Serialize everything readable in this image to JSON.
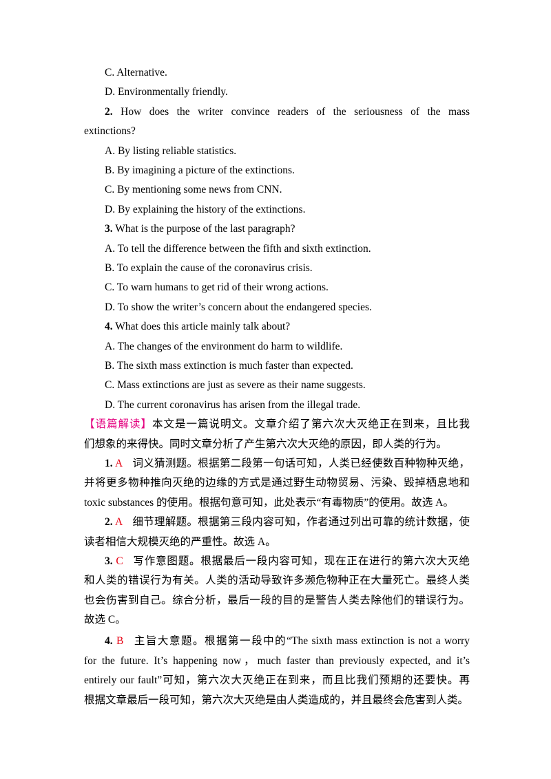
{
  "prev_options": [
    "C. Alternative.",
    "D. Environmentally friendly."
  ],
  "questions": [
    {
      "number": "2.",
      "lines": [
        "How does the writer convince readers of the seriousness of the mass",
        "extinctions?"
      ],
      "options": [
        "A. By listing reliable statistics.",
        "B. By imagining a picture of the extinctions.",
        "C. By mentioning some news from CNN.",
        "D. By explaining the history of the extinctions."
      ]
    },
    {
      "number": "3.",
      "lines": [
        "What is the purpose of the last paragraph?"
      ],
      "options": [
        "A. To tell the difference between the fifth and sixth extinction.",
        "B. To explain the cause of the coronavirus crisis.",
        "C. To warn humans to get rid of their wrong actions.",
        "D. To show the writer’s concern about the endangered species."
      ]
    },
    {
      "number": "4.",
      "lines": [
        "What does this article mainly talk about?"
      ],
      "options": [
        "A.  The changes of the environment do harm to wildlife.",
        "B. The sixth mass extinction is much faster than expected.",
        "C. Mass extinctions are just as severe as their name suggests.",
        "D. The current coronavirus has arisen from the illegal trade."
      ]
    }
  ],
  "analysis": {
    "label": "【语篇解读】",
    "lines": [
      "本文是一篇说明文。文章介绍了第六次大灭绝正在到来，且比我",
      "们想象的来得快。同时文章分析了产生第六次大灭绝的原因，即人类的行为。"
    ]
  },
  "answers": [
    {
      "number": "1.",
      "answer": "A",
      "lines": [
        "词义猜测题。根据第二段第一句话可知，人类已经使数百种物种灭绝，",
        "并将更多物种推向灭绝的边缘的方式是通过野生动物贸易、污染、毁掉栖息地和",
        "toxic substances 的使用。根据句意可知，此处表示“有毒物质”的使用。故选 A。"
      ]
    },
    {
      "number": "2.",
      "answer": "A",
      "lines": [
        "细节理解题。根据第三段内容可知，作者通过列出可靠的统计数据，使",
        "读者相信大规模灭绝的严重性。故选 A。"
      ]
    },
    {
      "number": "3.",
      "answer": "C",
      "lines": [
        "写作意图题。根据最后一段内容可知，现在正在进行的第六次大灭绝",
        "和人类的错误行为有关。人类的活动导致许多濒危物种正在大量死亡。最终人类",
        "也会伤害到自己。综合分析，最后一段的目的是警告人类去除他们的错误行为。",
        "故选 C。"
      ]
    },
    {
      "number": "4.",
      "answer": "B",
      "lines": [
        "主旨大意题。根据第一段中的“The sixth mass extinction is not a worry",
        "for the future. It’s happening now，much faster than previously expected, and  it’s",
        "entirely our fault”可知，第六次大灭绝正在到来，而且比我们预期的还要快。再",
        "根据文章最后一段可知，第六次大灭绝是由人类造成的，并且最终会危害到人类。"
      ]
    }
  ]
}
